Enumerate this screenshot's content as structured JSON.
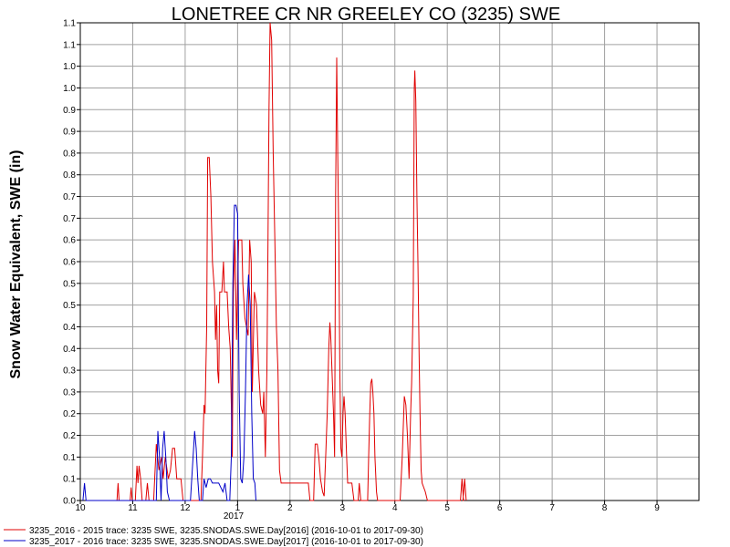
{
  "chart_data": {
    "type": "line",
    "title": "LONETREE CR NR GREELEY CO (3235) SWE",
    "ylabel": "Snow Water Equivalent, SWE (in)",
    "xlabel": "",
    "year_label": "2017",
    "x_tick_labels": [
      "10",
      "11",
      "12",
      "1",
      "2",
      "3",
      "4",
      "5",
      "6",
      "7",
      "8",
      "9"
    ],
    "y_tick_labels": [
      "0.0",
      "0.1",
      "0.1",
      "0.2",
      "0.2",
      "0.3",
      "0.3",
      "0.4",
      "0.4",
      "0.5",
      "0.5",
      "0.6",
      "0.6",
      "0.7",
      "0.7",
      "0.8",
      "0.8",
      "0.9",
      "0.9",
      "1.0",
      "1.0",
      "1.1",
      "1.1"
    ],
    "ylim": [
      0,
      1.1
    ],
    "xlim": [
      0,
      11.8
    ],
    "grid": true,
    "legend_position": "bottom",
    "series": [
      {
        "name": "3235_2016 - 2015 trace: 3235 SWE, 3235.SNODAS.SWE.Day[2016] (2016-10-01 to 2017-09-30)",
        "color": "#e00000",
        "points": [
          [
            0.7,
            0.0
          ],
          [
            0.72,
            0.04
          ],
          [
            0.74,
            0.0
          ],
          [
            0.95,
            0.0
          ],
          [
            0.97,
            0.03
          ],
          [
            0.99,
            0.0
          ],
          [
            1.05,
            0.0
          ],
          [
            1.08,
            0.08
          ],
          [
            1.1,
            0.04
          ],
          [
            1.12,
            0.08
          ],
          [
            1.15,
            0.05
          ],
          [
            1.18,
            0.0
          ],
          [
            1.25,
            0.0
          ],
          [
            1.28,
            0.04
          ],
          [
            1.31,
            0.0
          ],
          [
            1.4,
            0.0
          ],
          [
            1.45,
            0.13
          ],
          [
            1.5,
            0.07
          ],
          [
            1.55,
            0.1
          ],
          [
            1.58,
            0.05
          ],
          [
            1.62,
            0.1
          ],
          [
            1.68,
            0.05
          ],
          [
            1.72,
            0.07
          ],
          [
            1.76,
            0.12
          ],
          [
            1.8,
            0.12
          ],
          [
            1.84,
            0.05
          ],
          [
            1.92,
            0.05
          ],
          [
            1.96,
            0.0
          ],
          [
            2.3,
            0.0
          ],
          [
            2.33,
            0.1
          ],
          [
            2.36,
            0.22
          ],
          [
            2.38,
            0.2
          ],
          [
            2.41,
            0.4
          ],
          [
            2.43,
            0.79
          ],
          [
            2.46,
            0.79
          ],
          [
            2.49,
            0.7
          ],
          [
            2.52,
            0.55
          ],
          [
            2.56,
            0.48
          ],
          [
            2.58,
            0.37
          ],
          [
            2.6,
            0.45
          ],
          [
            2.62,
            0.3
          ],
          [
            2.64,
            0.27
          ],
          [
            2.66,
            0.48
          ],
          [
            2.7,
            0.48
          ],
          [
            2.73,
            0.55
          ],
          [
            2.75,
            0.48
          ],
          [
            2.8,
            0.48
          ],
          [
            2.83,
            0.4
          ],
          [
            2.86,
            0.35
          ],
          [
            2.9,
            0.1
          ],
          [
            2.92,
            0.48
          ],
          [
            2.95,
            0.6
          ],
          [
            2.98,
            0.37
          ],
          [
            3.02,
            0.6
          ],
          [
            3.05,
            0.6
          ],
          [
            3.08,
            0.6
          ],
          [
            3.1,
            0.5
          ],
          [
            3.14,
            0.42
          ],
          [
            3.17,
            0.4
          ],
          [
            3.2,
            0.38
          ],
          [
            3.23,
            0.6
          ],
          [
            3.26,
            0.55
          ],
          [
            3.28,
            0.25
          ],
          [
            3.32,
            0.48
          ],
          [
            3.36,
            0.45
          ],
          [
            3.4,
            0.3
          ],
          [
            3.44,
            0.22
          ],
          [
            3.48,
            0.2
          ],
          [
            3.5,
            0.25
          ],
          [
            3.53,
            0.1
          ],
          [
            3.56,
            0.3
          ],
          [
            3.58,
            0.6
          ],
          [
            3.6,
            0.9
          ],
          [
            3.62,
            1.1
          ],
          [
            3.65,
            1.06
          ],
          [
            3.68,
            0.8
          ],
          [
            3.71,
            0.6
          ],
          [
            3.74,
            0.4
          ],
          [
            3.77,
            0.3
          ],
          [
            3.8,
            0.07
          ],
          [
            3.83,
            0.04
          ],
          [
            3.9,
            0.04
          ],
          [
            4.05,
            0.04
          ],
          [
            4.2,
            0.04
          ],
          [
            4.3,
            0.04
          ],
          [
            4.35,
            0.04
          ],
          [
            4.38,
            0.0
          ],
          [
            4.45,
            0.0
          ],
          [
            4.48,
            0.13
          ],
          [
            4.52,
            0.13
          ],
          [
            4.55,
            0.1
          ],
          [
            4.58,
            0.05
          ],
          [
            4.62,
            0.02
          ],
          [
            4.65,
            0.01
          ],
          [
            4.68,
            0.1
          ],
          [
            4.71,
            0.2
          ],
          [
            4.74,
            0.35
          ],
          [
            4.76,
            0.41
          ],
          [
            4.78,
            0.37
          ],
          [
            4.8,
            0.3
          ],
          [
            4.83,
            0.2
          ],
          [
            4.85,
            0.1
          ],
          [
            4.87,
            0.7
          ],
          [
            4.89,
            1.02
          ],
          [
            4.91,
            0.8
          ],
          [
            4.93,
            0.6
          ],
          [
            4.95,
            0.3
          ],
          [
            4.97,
            0.12
          ],
          [
            4.99,
            0.1
          ],
          [
            5.01,
            0.2
          ],
          [
            5.03,
            0.24
          ],
          [
            5.05,
            0.2
          ],
          [
            5.08,
            0.1
          ],
          [
            5.1,
            0.04
          ],
          [
            5.13,
            0.04
          ],
          [
            5.18,
            0.04
          ],
          [
            5.22,
            0.0
          ],
          [
            5.3,
            0.0
          ],
          [
            5.32,
            0.04
          ],
          [
            5.35,
            0.0
          ],
          [
            5.48,
            0.0
          ],
          [
            5.5,
            0.1
          ],
          [
            5.52,
            0.2
          ],
          [
            5.54,
            0.27
          ],
          [
            5.56,
            0.28
          ],
          [
            5.58,
            0.25
          ],
          [
            5.6,
            0.2
          ],
          [
            5.62,
            0.1
          ],
          [
            5.65,
            0.02
          ],
          [
            5.67,
            0.0
          ],
          [
            6.1,
            0.0
          ],
          [
            6.14,
            0.1
          ],
          [
            6.18,
            0.24
          ],
          [
            6.21,
            0.22
          ],
          [
            6.24,
            0.15
          ],
          [
            6.27,
            0.05
          ],
          [
            6.3,
            0.2
          ],
          [
            6.32,
            0.27
          ],
          [
            6.35,
            0.47
          ],
          [
            6.37,
            0.95
          ],
          [
            6.38,
            0.99
          ],
          [
            6.4,
            0.92
          ],
          [
            6.42,
            0.7
          ],
          [
            6.44,
            0.55
          ],
          [
            6.46,
            0.35
          ],
          [
            6.48,
            0.2
          ],
          [
            6.5,
            0.07
          ],
          [
            6.52,
            0.04
          ],
          [
            6.58,
            0.02
          ],
          [
            6.62,
            0.0
          ],
          [
            7.25,
            0.0
          ],
          [
            7.28,
            0.05
          ],
          [
            7.31,
            0.0
          ],
          [
            7.3,
            0.0
          ],
          [
            7.33,
            0.05
          ],
          [
            7.36,
            0.0
          ]
        ]
      },
      {
        "name": "3235_2017 - 2016 trace: 3235 SWE, 3235.SNODAS.SWE.Day[2017] (2016-10-01 to 2017-09-30)",
        "color": "#0000c8",
        "points": [
          [
            0.05,
            0.0
          ],
          [
            0.08,
            0.04
          ],
          [
            0.11,
            0.0
          ],
          [
            1.45,
            0.0
          ],
          [
            1.48,
            0.16
          ],
          [
            1.51,
            0.1
          ],
          [
            1.54,
            0.0
          ],
          [
            1.57,
            0.12
          ],
          [
            1.6,
            0.16
          ],
          [
            1.63,
            0.1
          ],
          [
            1.66,
            0.02
          ],
          [
            1.7,
            0.0
          ],
          [
            2.1,
            0.0
          ],
          [
            2.14,
            0.08
          ],
          [
            2.18,
            0.16
          ],
          [
            2.21,
            0.12
          ],
          [
            2.24,
            0.05
          ],
          [
            2.27,
            0.0
          ],
          [
            2.33,
            0.0
          ],
          [
            2.36,
            0.05
          ],
          [
            2.4,
            0.03
          ],
          [
            2.44,
            0.05
          ],
          [
            2.48,
            0.05
          ],
          [
            2.52,
            0.04
          ],
          [
            2.56,
            0.04
          ],
          [
            2.6,
            0.04
          ],
          [
            2.64,
            0.04
          ],
          [
            2.68,
            0.03
          ],
          [
            2.72,
            0.02
          ],
          [
            2.76,
            0.04
          ],
          [
            2.8,
            0.0
          ],
          [
            2.85,
            0.0
          ],
          [
            2.88,
            0.1
          ],
          [
            2.91,
            0.5
          ],
          [
            2.94,
            0.68
          ],
          [
            2.97,
            0.68
          ],
          [
            3.0,
            0.66
          ],
          [
            3.03,
            0.25
          ],
          [
            3.06,
            0.05
          ],
          [
            3.09,
            0.04
          ],
          [
            3.12,
            0.1
          ],
          [
            3.15,
            0.25
          ],
          [
            3.18,
            0.45
          ],
          [
            3.21,
            0.52
          ],
          [
            3.24,
            0.45
          ],
          [
            3.27,
            0.2
          ],
          [
            3.3,
            0.05
          ],
          [
            3.33,
            0.04
          ],
          [
            3.35,
            0.0
          ]
        ]
      }
    ]
  }
}
